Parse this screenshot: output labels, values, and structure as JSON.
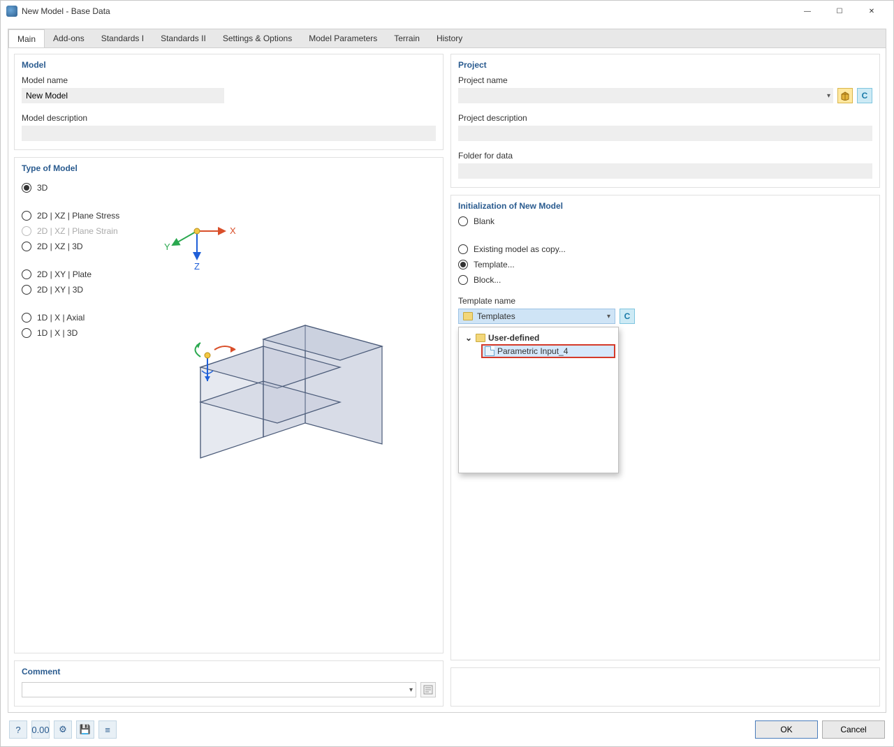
{
  "window": {
    "title": "New Model - Base Data",
    "min_icon": "—",
    "max_icon": "☐",
    "close_icon": "✕"
  },
  "tabs": [
    "Main",
    "Add-ons",
    "Standards I",
    "Standards II",
    "Settings & Options",
    "Model Parameters",
    "Terrain",
    "History"
  ],
  "active_tab_index": 0,
  "model": {
    "panel_title": "Model",
    "name_label": "Model name",
    "name_value": "New Model",
    "description_label": "Model description",
    "description_value": ""
  },
  "project": {
    "panel_title": "Project",
    "name_label": "Project name",
    "name_value": "",
    "description_label": "Project description",
    "description_value": "",
    "folder_label": "Folder for data",
    "folder_value": ""
  },
  "type_of_model": {
    "panel_title": "Type of Model",
    "options": [
      {
        "label": "3D",
        "selected": true,
        "disabled": false
      },
      {
        "label": "2D | XZ | Plane Stress",
        "selected": false,
        "disabled": false,
        "gap_before": true
      },
      {
        "label": "2D | XZ | Plane Strain",
        "selected": false,
        "disabled": true
      },
      {
        "label": "2D | XZ | 3D",
        "selected": false,
        "disabled": false
      },
      {
        "label": "2D | XY | Plate",
        "selected": false,
        "disabled": false,
        "gap_before": true
      },
      {
        "label": "2D | XY | 3D",
        "selected": false,
        "disabled": false
      },
      {
        "label": "1D | X | Axial",
        "selected": false,
        "disabled": false,
        "gap_before": true
      },
      {
        "label": "1D | X | 3D",
        "selected": false,
        "disabled": false
      }
    ],
    "axis": {
      "x_label": "X",
      "y_label": "Y",
      "z_label": "Z",
      "x_color": "#d94f2a",
      "y_color": "#2aa84f",
      "z_color": "#1f5fd8",
      "origin_color": "#f2c744"
    }
  },
  "init": {
    "panel_title": "Initialization of New Model",
    "options": [
      {
        "label": "Blank",
        "selected": false
      },
      {
        "label": "Existing model as copy...",
        "selected": false,
        "gap_before": true
      },
      {
        "label": "Template...",
        "selected": true
      },
      {
        "label": "Block...",
        "selected": false
      }
    ],
    "template_name_label": "Template name",
    "template_select_value": "Templates",
    "tree": {
      "root_label": "User-defined",
      "item_label": "Parametric Input_4"
    },
    "callout_color": "#d43a2a"
  },
  "comment": {
    "panel_title": "Comment"
  },
  "buttons": {
    "ok": "OK",
    "cancel": "Cancel"
  },
  "toolbar_icons": [
    "?",
    "0.00",
    "⚙",
    "💾",
    "≡"
  ]
}
